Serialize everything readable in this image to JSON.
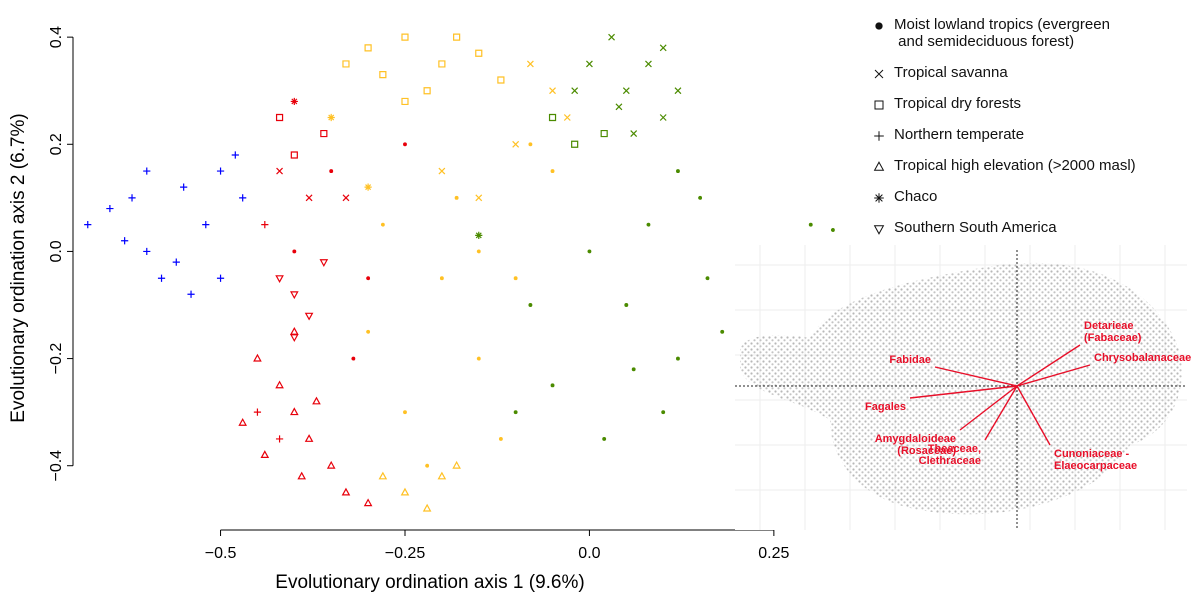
{
  "chart_data": {
    "type": "scatter",
    "xlabel": "Evolutionary ordination axis 1 (9.6%)",
    "ylabel": "Evolutionary ordination axis 2 (6.7%)",
    "xlim": [
      -0.7,
      0.81
    ],
    "ylim": [
      -0.52,
      0.46
    ],
    "xticks": [
      {
        "value": -0.5,
        "label": "−0.5"
      },
      {
        "value": -0.25,
        "label": "−0.25"
      },
      {
        "value": 0,
        "label": "0.0"
      },
      {
        "value": 0.25,
        "label": "0.25"
      }
    ],
    "yticks": [
      {
        "value": -0.4,
        "label": "−0.4"
      },
      {
        "value": -0.2,
        "label": "−0.2"
      },
      {
        "value": 0,
        "label": "0.0"
      },
      {
        "value": 0.2,
        "label": "0.2"
      },
      {
        "value": 0.4,
        "label": "0.4"
      }
    ],
    "series": [
      {
        "name": "Moist lowland tropics (evergreen\n and semideciduous forest)",
        "marker": "dot",
        "groups": [
          {
            "color": "#4b8b00",
            "points": [
              [
                0.05,
                -0.1
              ],
              [
                0.12,
                -0.2
              ],
              [
                0.2,
                -0.05
              ],
              [
                0.25,
                0.0
              ],
              [
                0.3,
                0.05
              ],
              [
                0.15,
                0.1
              ],
              [
                0.1,
                -0.3
              ],
              [
                -0.05,
                -0.25
              ],
              [
                0.0,
                0.0
              ],
              [
                0.18,
                -0.15
              ],
              [
                0.22,
                -0.25
              ],
              [
                0.08,
                0.05
              ],
              [
                -0.08,
                -0.1
              ],
              [
                0.28,
                -0.1
              ],
              [
                0.12,
                0.15
              ],
              [
                0.33,
                0.04
              ],
              [
                0.02,
                -0.35
              ],
              [
                -0.1,
                -0.3
              ],
              [
                0.06,
                -0.22
              ],
              [
                0.16,
                -0.05
              ]
            ]
          },
          {
            "color": "#ffc125",
            "points": [
              [
                -0.2,
                -0.05
              ],
              [
                -0.15,
                -0.2
              ],
              [
                -0.25,
                -0.3
              ],
              [
                -0.1,
                -0.05
              ],
              [
                -0.18,
                0.1
              ],
              [
                -0.28,
                0.05
              ],
              [
                -0.05,
                0.15
              ],
              [
                -0.22,
                -0.4
              ],
              [
                -0.12,
                -0.35
              ],
              [
                -0.3,
                -0.15
              ],
              [
                -0.08,
                0.2
              ],
              [
                -0.15,
                0.0
              ]
            ]
          },
          {
            "color": "#e8000b",
            "points": [
              [
                -0.35,
                0.15
              ],
              [
                -0.3,
                -0.05
              ],
              [
                -0.32,
                -0.2
              ],
              [
                -0.4,
                0.0
              ],
              [
                -0.25,
                0.2
              ]
            ]
          }
        ]
      },
      {
        "name": "Tropical savanna",
        "marker": "cross",
        "groups": [
          {
            "color": "#4b8b00",
            "points": [
              [
                0.05,
                0.3
              ],
              [
                0.08,
                0.35
              ],
              [
                0.1,
                0.25
              ],
              [
                0.03,
                0.4
              ],
              [
                0.12,
                0.3
              ],
              [
                0.06,
                0.22
              ],
              [
                0.0,
                0.35
              ],
              [
                0.1,
                0.38
              ],
              [
                0.04,
                0.27
              ],
              [
                -0.02,
                0.3
              ]
            ]
          },
          {
            "color": "#ffc125",
            "points": [
              [
                -0.05,
                0.3
              ],
              [
                -0.1,
                0.2
              ],
              [
                -0.15,
                0.1
              ],
              [
                -0.08,
                0.35
              ],
              [
                -0.2,
                0.15
              ],
              [
                -0.03,
                0.25
              ]
            ]
          },
          {
            "color": "#e8000b",
            "points": [
              [
                -0.38,
                0.1
              ],
              [
                -0.42,
                0.15
              ],
              [
                -0.33,
                0.1
              ]
            ]
          }
        ]
      },
      {
        "name": "Tropical dry forests",
        "marker": "square",
        "groups": [
          {
            "color": "#ffc125",
            "points": [
              [
                -0.3,
                0.38
              ],
              [
                -0.25,
                0.4
              ],
              [
                -0.2,
                0.35
              ],
              [
                -0.15,
                0.37
              ],
              [
                -0.28,
                0.33
              ],
              [
                -0.22,
                0.3
              ],
              [
                -0.12,
                0.32
              ],
              [
                -0.33,
                0.35
              ],
              [
                -0.18,
                0.4
              ],
              [
                -0.25,
                0.28
              ]
            ]
          },
          {
            "color": "#4b8b00",
            "points": [
              [
                -0.05,
                0.25
              ],
              [
                -0.02,
                0.2
              ],
              [
                0.02,
                0.22
              ]
            ]
          },
          {
            "color": "#e8000b",
            "points": [
              [
                -0.42,
                0.25
              ],
              [
                -0.4,
                0.18
              ],
              [
                -0.36,
                0.22
              ]
            ]
          }
        ]
      },
      {
        "name": "Northern temperate",
        "marker": "plus",
        "groups": [
          {
            "color": "#0000ff",
            "points": [
              [
                -0.68,
                0.05
              ],
              [
                -0.62,
                0.1
              ],
              [
                -0.6,
                0.0
              ],
              [
                -0.55,
                0.12
              ],
              [
                -0.58,
                -0.05
              ],
              [
                -0.65,
                0.08
              ],
              [
                -0.5,
                0.15
              ],
              [
                -0.52,
                0.05
              ],
              [
                -0.6,
                0.15
              ],
              [
                -0.56,
                -0.02
              ],
              [
                -0.48,
                0.18
              ],
              [
                -0.54,
                -0.08
              ],
              [
                -0.63,
                0.02
              ],
              [
                -0.5,
                -0.05
              ],
              [
                -0.47,
                0.1
              ]
            ]
          },
          {
            "color": "#e8000b",
            "points": [
              [
                -0.45,
                -0.3
              ],
              [
                -0.42,
                -0.35
              ],
              [
                -0.44,
                0.05
              ]
            ]
          }
        ]
      },
      {
        "name": "Tropical high elevation (>2000 masl)",
        "marker": "triangle",
        "groups": [
          {
            "color": "#e8000b",
            "points": [
              [
                -0.45,
                -0.2
              ],
              [
                -0.4,
                -0.3
              ],
              [
                -0.38,
                -0.35
              ],
              [
                -0.42,
                -0.25
              ],
              [
                -0.35,
                -0.4
              ],
              [
                -0.33,
                -0.45
              ],
              [
                -0.44,
                -0.38
              ],
              [
                -0.4,
                -0.15
              ],
              [
                -0.37,
                -0.28
              ],
              [
                -0.3,
                -0.47
              ],
              [
                -0.47,
                -0.32
              ],
              [
                -0.39,
                -0.42
              ]
            ]
          },
          {
            "color": "#ffc125",
            "points": [
              [
                -0.25,
                -0.45
              ],
              [
                -0.2,
                -0.42
              ],
              [
                -0.22,
                -0.48
              ],
              [
                -0.18,
                -0.4
              ],
              [
                -0.28,
                -0.42
              ]
            ]
          }
        ]
      },
      {
        "name": "Chaco",
        "marker": "asterisk",
        "groups": [
          {
            "color": "#ffc125",
            "points": [
              [
                -0.3,
                0.12
              ],
              [
                -0.35,
                0.25
              ]
            ]
          },
          {
            "color": "#e8000b",
            "points": [
              [
                -0.4,
                0.28
              ]
            ]
          },
          {
            "color": "#4b8b00",
            "points": [
              [
                -0.15,
                0.03
              ]
            ]
          }
        ]
      },
      {
        "name": "Southern South America",
        "marker": "triangle-down",
        "groups": [
          {
            "color": "#e8000b",
            "points": [
              [
                -0.4,
                -0.08
              ],
              [
                -0.38,
                -0.12
              ],
              [
                -0.42,
                -0.05
              ],
              [
                -0.36,
                -0.02
              ],
              [
                -0.4,
                -0.16
              ]
            ]
          }
        ]
      }
    ],
    "inset": {
      "color": "#e8102a",
      "arrows": [
        {
          "label": [
            "Fabidae"
          ],
          "x": -0.82,
          "y": 0.19
        },
        {
          "label": [
            "Fagales"
          ],
          "x": -1.07,
          "y": -0.12
        },
        {
          "label": [
            "Amygdaloideae",
            "(Rosaceae)"
          ],
          "x": -0.57,
          "y": -0.44
        },
        {
          "label": [
            "Theaceae,",
            "Clethraceae"
          ],
          "x": -0.32,
          "y": -0.54
        },
        {
          "label": [
            "Cunoniaceae -",
            "Elaeocarpaceae"
          ],
          "x": 0.33,
          "y": -0.59
        },
        {
          "label": [
            "Chrysobalanaceae"
          ],
          "x": 0.73,
          "y": 0.21
        },
        {
          "label": [
            "Detarieae",
            "(Fabaceae)"
          ],
          "x": 0.63,
          "y": 0.41
        }
      ]
    }
  }
}
